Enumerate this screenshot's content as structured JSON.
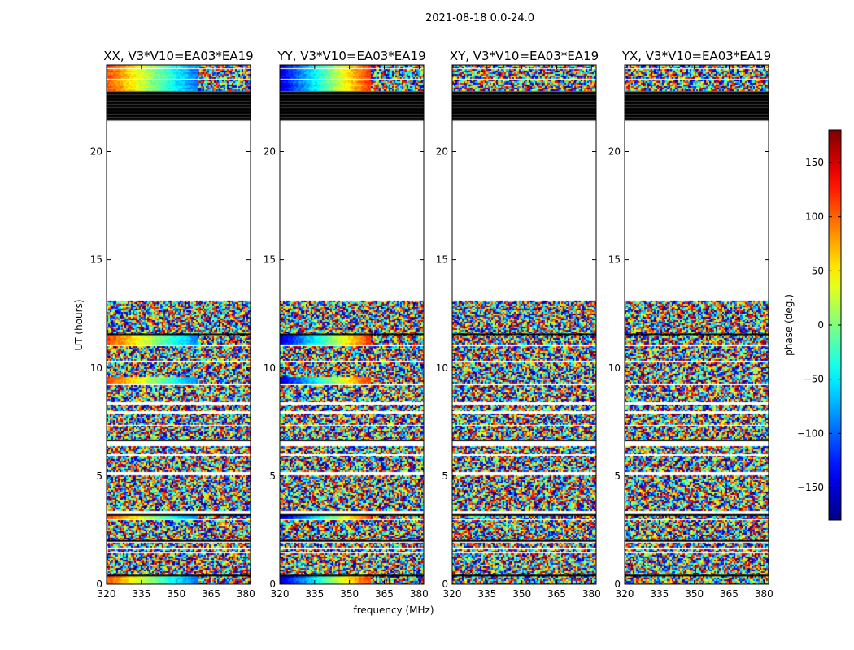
{
  "chart_data": {
    "type": "heatmap",
    "suptitle": "2021-08-18 0.0-24.0",
    "xlabel": "frequency (MHz)",
    "ylabel": "UT (hours)",
    "xlim": [
      320,
      382
    ],
    "ylim": [
      0,
      24
    ],
    "xticks": [
      320,
      335,
      350,
      365,
      380
    ],
    "yticks": [
      0,
      5,
      10,
      15,
      20
    ],
    "panels": [
      {
        "pol": "XX",
        "title": "XX, V3*V10=EA03*EA19"
      },
      {
        "pol": "YY",
        "title": "YY, V3*V10=EA03*EA19"
      },
      {
        "pol": "XY",
        "title": "XY, V3*V10=EA03*EA19"
      },
      {
        "pol": "YX",
        "title": "YX, V3*V10=EA03*EA19"
      }
    ],
    "colorbar": {
      "label": "phase (deg.)",
      "range": [
        -180,
        180
      ],
      "ticks": [
        -150,
        -100,
        -50,
        0,
        50,
        100,
        150
      ],
      "colormap": "jet"
    },
    "data_blocks_hours": [
      [
        0.0,
        0.35
      ],
      [
        0.45,
        1.4
      ],
      [
        1.5,
        1.6
      ],
      [
        1.7,
        1.9
      ],
      [
        2.05,
        2.95
      ],
      [
        3.05,
        3.2
      ],
      [
        3.45,
        4.4
      ],
      [
        4.5,
        5.0
      ],
      [
        5.25,
        5.9
      ],
      [
        6.05,
        6.35
      ],
      [
        6.7,
        7.3
      ],
      [
        7.4,
        7.85
      ],
      [
        8.0,
        8.3
      ],
      [
        8.45,
        8.85
      ],
      [
        8.95,
        9.2
      ],
      [
        9.3,
        9.55
      ],
      [
        9.65,
        10.25
      ],
      [
        10.35,
        11.0
      ],
      [
        11.15,
        11.5
      ],
      [
        11.6,
        12.4
      ],
      [
        12.5,
        13.1
      ],
      [
        22.85,
        23.3
      ],
      [
        23.4,
        23.8
      ],
      [
        23.9,
        24.0
      ]
    ],
    "flagged_stripes_hours": [
      21.45,
      21.6,
      21.75,
      21.9,
      22.05,
      22.2,
      22.35,
      22.5,
      22.65
    ]
  }
}
